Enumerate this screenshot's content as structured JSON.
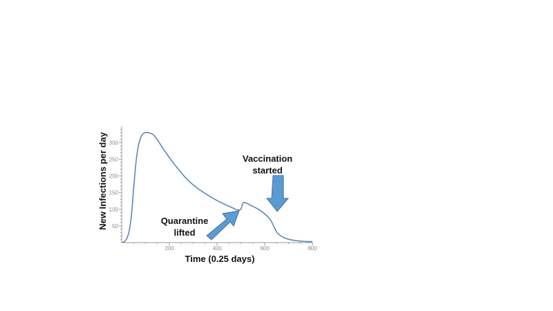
{
  "chart_data": {
    "type": "line",
    "xlabel": "Time (0.25 days)",
    "ylabel": "New Infections per day",
    "xlim": [
      0,
      800
    ],
    "ylim": [
      0,
      340
    ],
    "xticks": [
      200,
      400,
      600,
      800
    ],
    "yticks": [
      50,
      100,
      150,
      200,
      250,
      300
    ],
    "grid": false,
    "series": [
      {
        "color": "#5b87b5",
        "x": [
          0,
          10,
          20,
          30,
          40,
          50,
          60,
          70,
          80,
          90,
          100,
          110,
          120,
          130,
          140,
          150,
          160,
          180,
          200,
          220,
          240,
          260,
          280,
          300,
          320,
          340,
          360,
          380,
          400,
          420,
          440,
          460,
          480,
          490,
          500,
          505,
          510,
          520,
          530,
          540,
          560,
          580,
          600,
          620,
          630,
          640,
          650,
          660,
          670,
          680,
          700,
          720,
          740,
          760,
          780,
          800
        ],
        "y": [
          0,
          2,
          10,
          30,
          75,
          160,
          240,
          290,
          315,
          327,
          330,
          330,
          328,
          325,
          318,
          308,
          297,
          275,
          255,
          236,
          218,
          201,
          186,
          173,
          162,
          152,
          143,
          134,
          126,
          119,
          112,
          106,
          99,
          98,
          100,
          112,
          120,
          119,
          116,
          112,
          105,
          97,
          86,
          72,
          60,
          45,
          32,
          24,
          19,
          15,
          10,
          7,
          5,
          4,
          3,
          3
        ]
      }
    ],
    "annotations": [
      {
        "text_lines": [
          "Quarantine",
          "lifted"
        ],
        "x": 500,
        "y": 100
      },
      {
        "text_lines": [
          "Vaccination",
          "started"
        ],
        "x": 650,
        "y": 90
      }
    ]
  }
}
